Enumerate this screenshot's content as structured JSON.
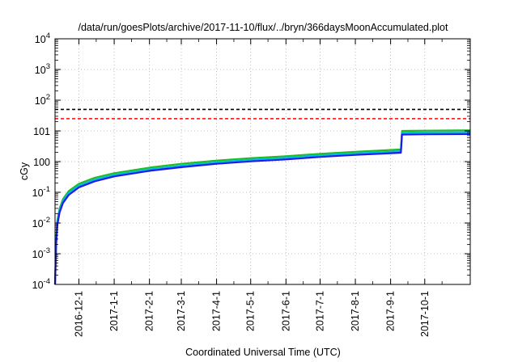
{
  "chart_data": {
    "type": "line",
    "title": "/data/run/goesPlots/archive/2017-11-10/flux/../bryn/366daysMoonAccumulated.plot",
    "xlabel": "Coordinated Universal Time (UTC)",
    "ylabel": "cGy",
    "y_scale": "log",
    "ylim": [
      0.0001,
      10000
    ],
    "xlim": [
      "2016-11-10",
      "2017-11-10"
    ],
    "y_ticks": [
      {
        "value": 0.0001,
        "base": "10",
        "exp": "-4"
      },
      {
        "value": 0.001,
        "base": "10",
        "exp": "-3"
      },
      {
        "value": 0.01,
        "base": "10",
        "exp": "-2"
      },
      {
        "value": 0.1,
        "base": "10",
        "exp": "-1"
      },
      {
        "value": 1,
        "label": "10",
        "suffix": "0"
      },
      {
        "value": 10,
        "label": "10",
        "suffix": "1"
      },
      {
        "value": 100,
        "base": "10",
        "exp": "2"
      },
      {
        "value": 1000,
        "base": "10",
        "exp": "3"
      },
      {
        "value": 10000,
        "base": "10",
        "exp": "4"
      }
    ],
    "x_ticks": [
      {
        "date": "2016-12-01",
        "label": "2016-12-1"
      },
      {
        "date": "2017-01-01",
        "label": "2017-1-1"
      },
      {
        "date": "2017-02-01",
        "label": "2017-2-1"
      },
      {
        "date": "2017-03-01",
        "label": "2017-3-1"
      },
      {
        "date": "2017-04-01",
        "label": "2017-4-1"
      },
      {
        "date": "2017-05-01",
        "label": "2017-5-1"
      },
      {
        "date": "2017-06-01",
        "label": "2017-6-1"
      },
      {
        "date": "2017-07-01",
        "label": "2017-7-1"
      },
      {
        "date": "2017-08-01",
        "label": "2017-8-1"
      },
      {
        "date": "2017-09-01",
        "label": "2017-9-1"
      },
      {
        "date": "2017-10-01",
        "label": "2017-10-1"
      }
    ],
    "reference_lines": [
      {
        "value": 50,
        "color": "#000000",
        "style": "dashed"
      },
      {
        "value": 25,
        "color": "#ff0000",
        "style": "dashed"
      }
    ],
    "grid": "dotted",
    "series": [
      {
        "color": "#22bb22",
        "points": [
          [
            "2016-11-10",
            0.0001
          ],
          [
            "2016-11-11",
            0.003
          ],
          [
            "2016-11-12",
            0.012
          ],
          [
            "2016-11-14",
            0.03
          ],
          [
            "2016-11-17",
            0.06
          ],
          [
            "2016-11-22",
            0.11
          ],
          [
            "2016-12-01",
            0.19
          ],
          [
            "2016-12-15",
            0.3
          ],
          [
            "2017-01-01",
            0.42
          ],
          [
            "2017-02-01",
            0.64
          ],
          [
            "2017-03-01",
            0.85
          ],
          [
            "2017-04-01",
            1.08
          ],
          [
            "2017-05-01",
            1.3
          ],
          [
            "2017-06-01",
            1.5
          ],
          [
            "2017-07-01",
            1.8
          ],
          [
            "2017-08-01",
            2.1
          ],
          [
            "2017-09-01",
            2.4
          ],
          [
            "2017-09-10",
            2.5
          ],
          [
            "2017-09-11",
            10.0
          ],
          [
            "2017-10-01",
            10.2
          ],
          [
            "2017-11-10",
            10.5
          ]
        ]
      },
      {
        "color": "#00bbdd",
        "points": [
          [
            "2016-11-10",
            0.0001
          ],
          [
            "2016-11-11",
            0.0025
          ],
          [
            "2016-11-12",
            0.01
          ],
          [
            "2016-11-14",
            0.026
          ],
          [
            "2016-11-17",
            0.052
          ],
          [
            "2016-11-22",
            0.095
          ],
          [
            "2016-12-01",
            0.165
          ],
          [
            "2016-12-15",
            0.26
          ],
          [
            "2017-01-01",
            0.37
          ],
          [
            "2017-02-01",
            0.56
          ],
          [
            "2017-03-01",
            0.74
          ],
          [
            "2017-04-01",
            0.95
          ],
          [
            "2017-05-01",
            1.15
          ],
          [
            "2017-06-01",
            1.33
          ],
          [
            "2017-07-01",
            1.6
          ],
          [
            "2017-08-01",
            1.85
          ],
          [
            "2017-09-01",
            2.1
          ],
          [
            "2017-09-10",
            2.2
          ],
          [
            "2017-09-11",
            8.7
          ],
          [
            "2017-10-01",
            8.9
          ],
          [
            "2017-11-10",
            9.1
          ]
        ]
      },
      {
        "color": "#1a1aee",
        "points": [
          [
            "2016-11-10",
            0.0001
          ],
          [
            "2016-11-11",
            0.002
          ],
          [
            "2016-11-12",
            0.0085
          ],
          [
            "2016-11-14",
            0.022
          ],
          [
            "2016-11-17",
            0.045
          ],
          [
            "2016-11-22",
            0.082
          ],
          [
            "2016-12-01",
            0.145
          ],
          [
            "2016-12-15",
            0.23
          ],
          [
            "2017-01-01",
            0.33
          ],
          [
            "2017-02-01",
            0.5
          ],
          [
            "2017-03-01",
            0.66
          ],
          [
            "2017-04-01",
            0.85
          ],
          [
            "2017-05-01",
            1.02
          ],
          [
            "2017-06-01",
            1.18
          ],
          [
            "2017-07-01",
            1.42
          ],
          [
            "2017-08-01",
            1.65
          ],
          [
            "2017-09-01",
            1.88
          ],
          [
            "2017-09-10",
            1.95
          ],
          [
            "2017-09-11",
            7.6
          ],
          [
            "2017-10-01",
            7.75
          ],
          [
            "2017-11-10",
            7.9
          ]
        ]
      }
    ]
  }
}
